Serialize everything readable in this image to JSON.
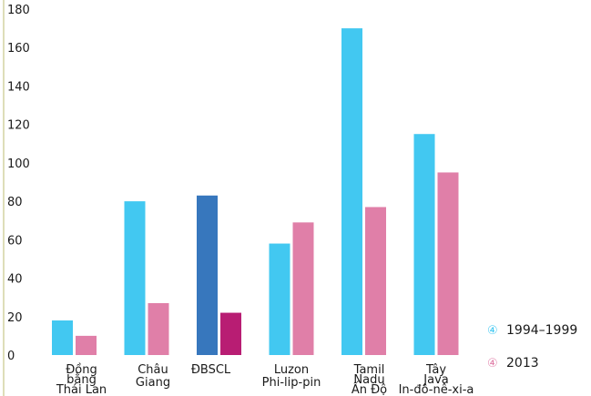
{
  "chart_data": {
    "type": "bar",
    "title": "",
    "xlabel": "",
    "ylabel": "",
    "ylim": [
      0,
      180
    ],
    "yticks": [
      0,
      20,
      40,
      60,
      80,
      100,
      120,
      140,
      160,
      180
    ],
    "grid": false,
    "legend_position": "bottom-right",
    "categories": [
      [
        "Đồng",
        "bằng",
        "Thái Lan"
      ],
      [
        "Châu",
        "Giang"
      ],
      [
        "ĐBSCL"
      ],
      [
        "Luzon",
        "Phi-lip-pin"
      ],
      [
        "Tamil",
        "Nadu",
        "Ấn Độ"
      ],
      [
        "Tây",
        "Java",
        "In-đô-nê-xi-a"
      ]
    ],
    "series": [
      {
        "name": "1994–1999",
        "color": "#42c8f1",
        "values": [
          18,
          80,
          83,
          58,
          170,
          115
        ]
      },
      {
        "name": "2013",
        "color": "#e07fa8",
        "values": [
          10,
          27,
          22,
          69,
          77,
          95
        ]
      }
    ],
    "highlight": {
      "category_index": 2,
      "colors": [
        "#3777bd",
        "#b81d73"
      ]
    },
    "legend_marker": "④",
    "axis_color": "#c9c98a"
  }
}
